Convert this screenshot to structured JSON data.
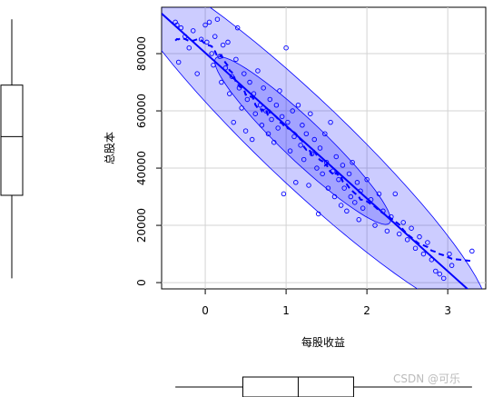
{
  "chart_data": {
    "type": "scatter",
    "x_label": "每股收益",
    "y_label": "总股本",
    "watermark": "CSDN @可乐",
    "color": "#0000ff",
    "grid": true,
    "xlim": [
      -0.54,
      3.47
    ],
    "ylim": [
      -2200,
      96200
    ],
    "xticks": [
      0,
      1,
      2,
      3
    ],
    "yticks": [
      0,
      20000,
      40000,
      60000,
      80000
    ],
    "x": [
      -0.37,
      -0.35,
      -0.33,
      -0.3,
      -0.25,
      -0.2,
      -0.15,
      -0.1,
      -0.05,
      0.0,
      0.02,
      0.05,
      0.08,
      0.1,
      0.12,
      0.15,
      0.18,
      0.2,
      0.22,
      0.25,
      0.28,
      0.3,
      0.33,
      0.35,
      0.38,
      0.4,
      0.42,
      0.45,
      0.48,
      0.5,
      0.52,
      0.55,
      0.58,
      0.6,
      0.62,
      0.65,
      0.68,
      0.7,
      0.72,
      0.75,
      0.78,
      0.8,
      0.82,
      0.85,
      0.88,
      0.9,
      0.92,
      0.95,
      0.97,
      1.0,
      1.02,
      1.05,
      1.08,
      1.1,
      1.12,
      1.15,
      1.18,
      1.2,
      1.22,
      1.25,
      1.28,
      1.3,
      1.32,
      1.35,
      1.38,
      1.4,
      1.42,
      1.45,
      1.48,
      1.5,
      1.52,
      1.55,
      1.58,
      1.6,
      1.62,
      1.65,
      1.68,
      1.7,
      1.72,
      1.75,
      1.78,
      1.8,
      1.82,
      1.85,
      1.88,
      1.9,
      1.92,
      1.95,
      2.0,
      2.05,
      2.1,
      2.15,
      2.2,
      2.25,
      2.3,
      2.35,
      2.4,
      2.45,
      2.5,
      2.55,
      2.6,
      2.65,
      2.7,
      2.75,
      2.8,
      2.85,
      2.9,
      2.95,
      3.02,
      3.05,
      3.3
    ],
    "values": [
      91000,
      90000,
      77000,
      89000,
      86000,
      82000,
      88000,
      73000,
      85000,
      90000,
      84000,
      91000,
      80000,
      76000,
      86000,
      92000,
      79000,
      70000,
      83000,
      75000,
      84000,
      66000,
      72000,
      56000,
      78000,
      89000,
      68000,
      61000,
      73000,
      53000,
      64000,
      70000,
      50000,
      66000,
      59000,
      74000,
      62000,
      55000,
      68000,
      60000,
      52000,
      64000,
      57000,
      49000,
      62000,
      54000,
      67000,
      58000,
      31000,
      82000,
      56000,
      46000,
      60000,
      51000,
      35000,
      62000,
      48000,
      55000,
      43000,
      52000,
      34000,
      59000,
      45000,
      50000,
      40000,
      24000,
      47000,
      38000,
      52000,
      42000,
      33000,
      56000,
      39000,
      30000,
      44000,
      36000,
      27000,
      41000,
      33000,
      25000,
      38000,
      30000,
      42000,
      28000,
      35000,
      22000,
      32000,
      26000,
      36000,
      29000,
      20000,
      31000,
      25000,
      18000,
      23000,
      31000,
      17000,
      21000,
      15000,
      19000,
      12000,
      16000,
      10000,
      14000,
      8000,
      4000,
      3000,
      1500,
      10000,
      6000,
      11000
    ]
  }
}
